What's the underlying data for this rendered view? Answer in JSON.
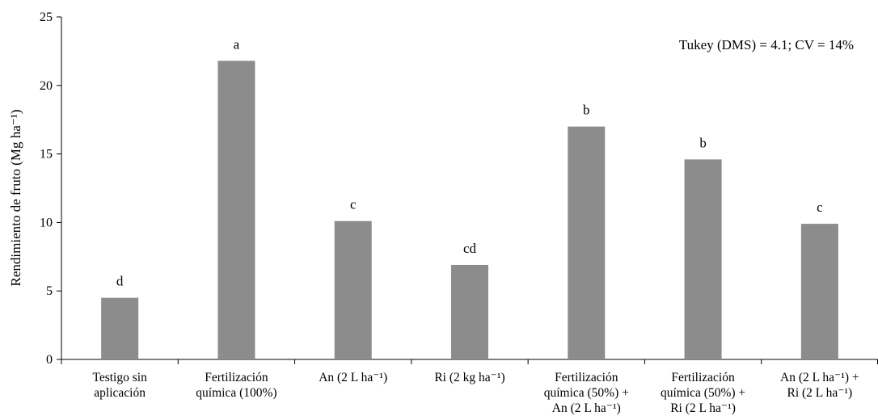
{
  "chart_data": {
    "type": "bar",
    "categories": [
      [
        "Testigo sin",
        "aplicación"
      ],
      [
        "Fertilización",
        "química (100%)"
      ],
      [
        "An (2 L ha⁻¹)"
      ],
      [
        "Ri (2 kg ha⁻¹)"
      ],
      [
        "Fertilización",
        "química (50%) +",
        "An (2 L ha⁻¹)"
      ],
      [
        "Fertilización",
        "química (50%) +",
        "Ri (2 L ha⁻¹)"
      ],
      [
        "An (2 L ha⁻¹)  +",
        "Ri (2 L ha⁻¹)"
      ]
    ],
    "values": [
      4.5,
      21.8,
      10.1,
      6.9,
      17.0,
      14.6,
      9.9
    ],
    "letters": [
      "d",
      "a",
      "c",
      "cd",
      "b",
      "b",
      "c"
    ],
    "ylabel": "Rendimiento de fruto (Mg ha⁻¹)",
    "ylim": [
      0,
      25
    ],
    "yticks": [
      0,
      5,
      10,
      15,
      20,
      25
    ],
    "annotation": "Tukey (DMS) = 4.1; CV = 14%",
    "grid": false,
    "legend": "none",
    "bar_color": "#8c8c8c"
  }
}
